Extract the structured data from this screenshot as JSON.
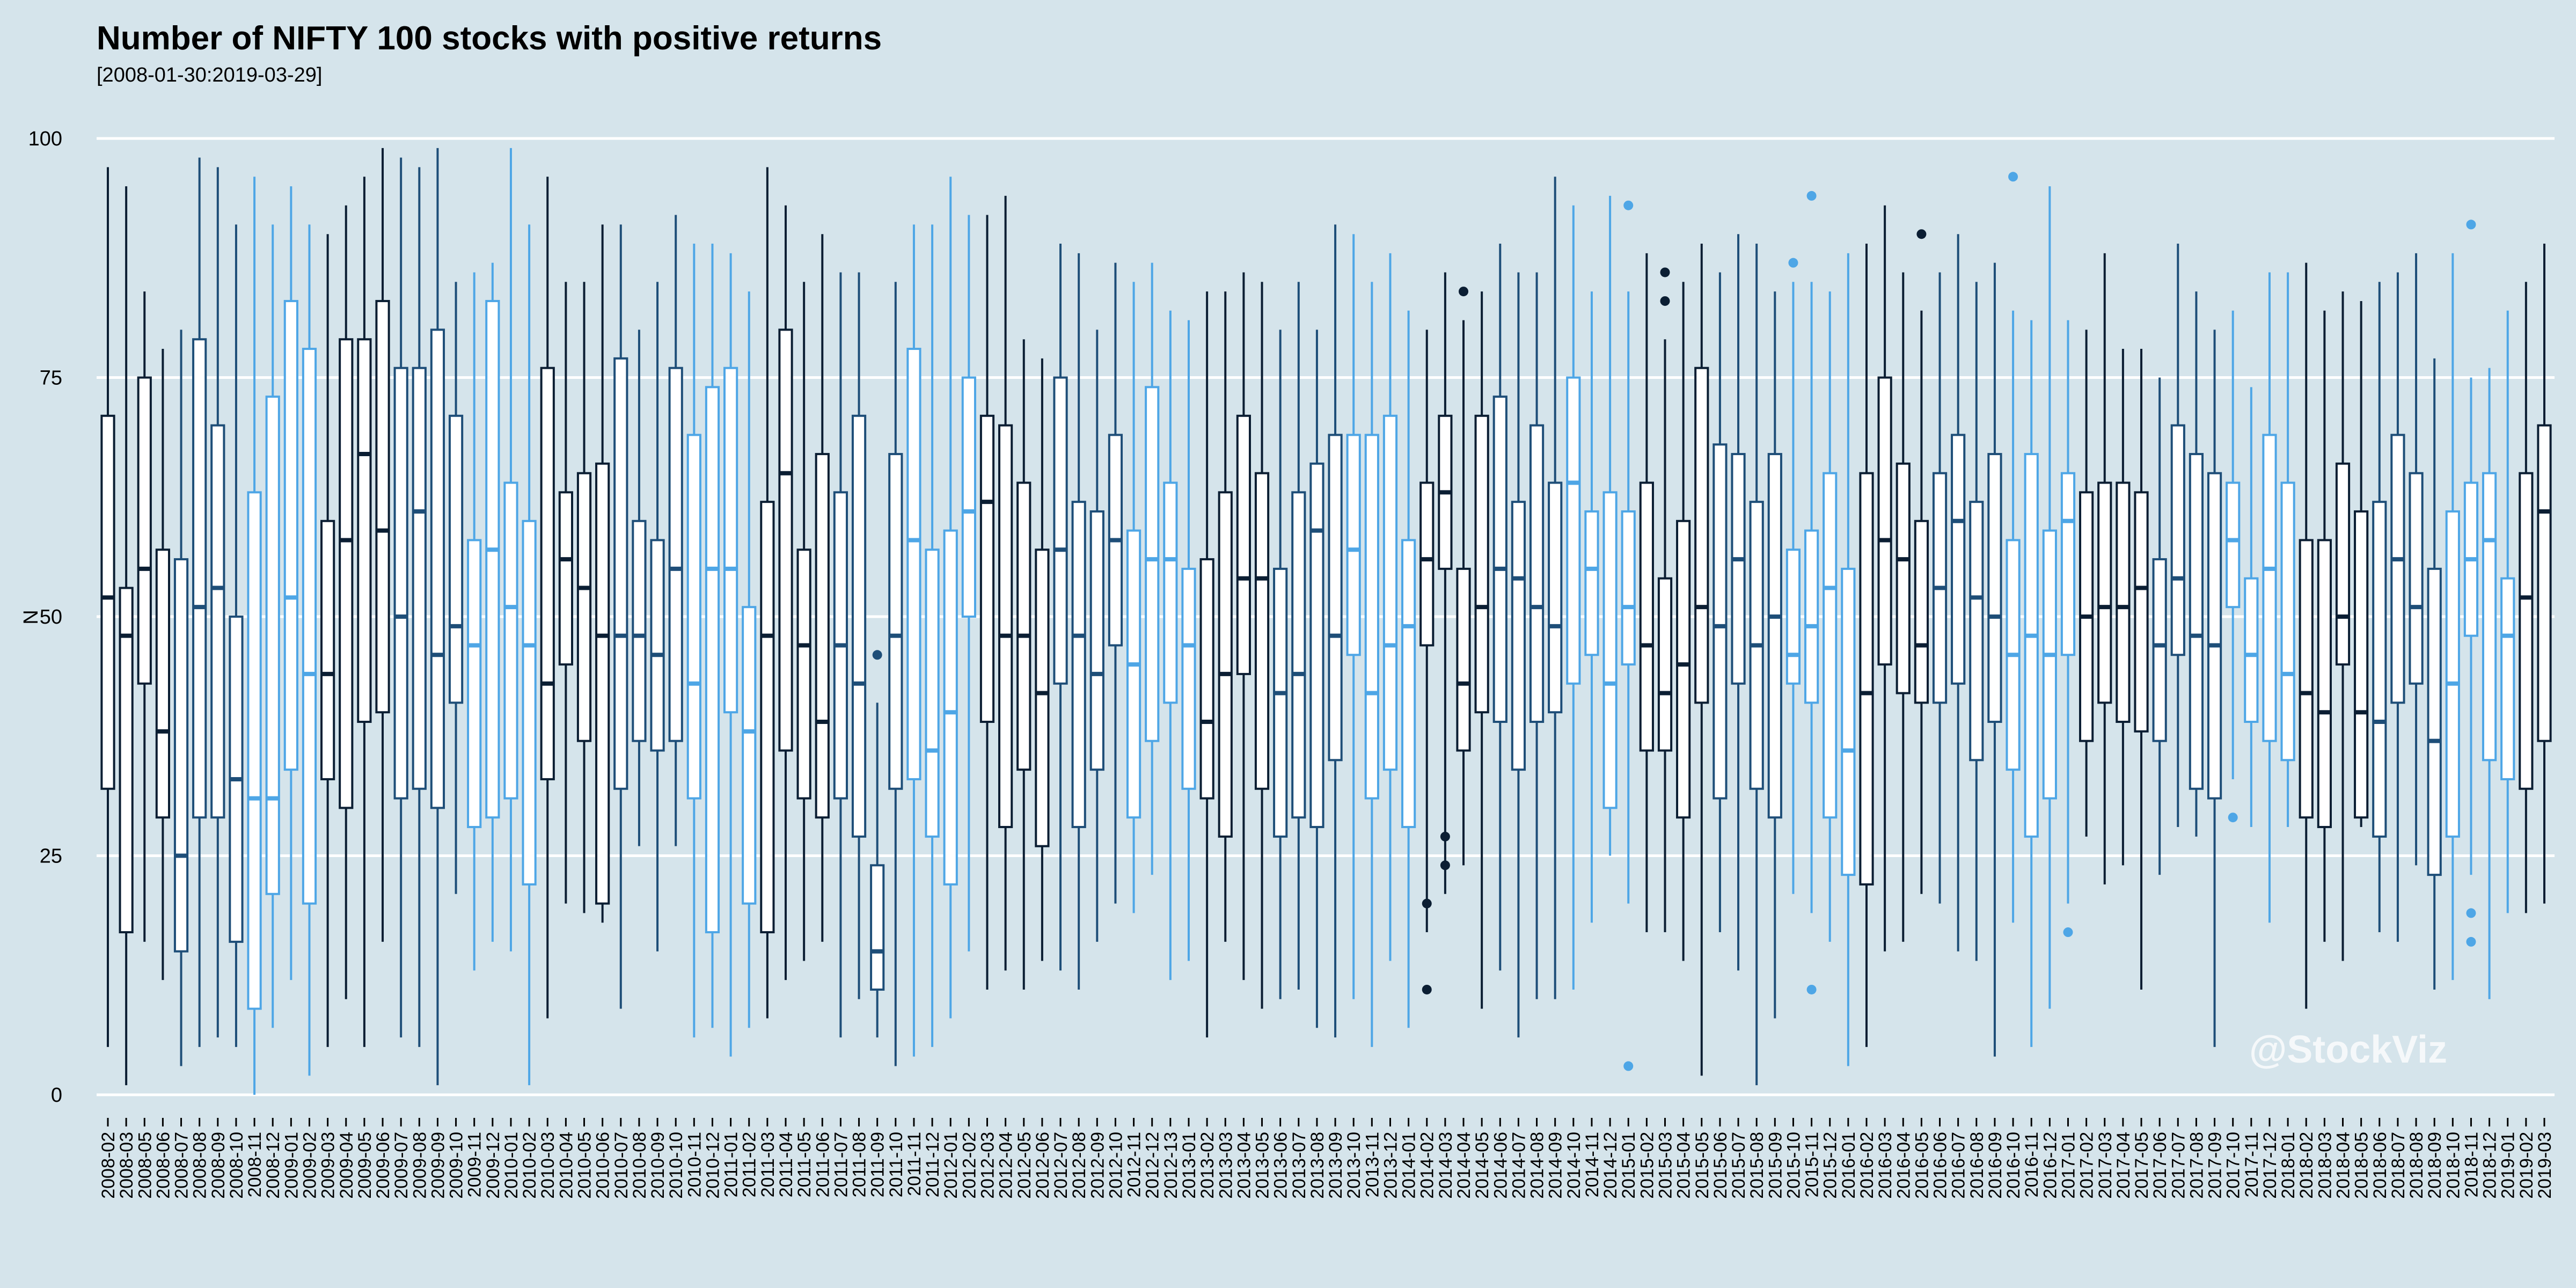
{
  "chart_data": {
    "type": "box",
    "title": "Number of NIFTY 100 stocks with positive returns",
    "subtitle": "[2008-01-30:2019-03-29]",
    "xlabel": "",
    "ylabel": "N",
    "ylim": [
      0,
      100
    ],
    "yticks": [
      0,
      25,
      50,
      75,
      100
    ],
    "grid": "horizontal",
    "legend": "none",
    "watermark": "@StockViz",
    "colors": {
      "background": "#d5e4eb",
      "grid": "#ffffff",
      "box_fill": "#ffffff",
      "dark": "#0b1e33",
      "mid": "#1e4e78",
      "light": "#4ea6e6"
    },
    "fields": [
      "month",
      "min",
      "q1",
      "median",
      "q3",
      "max",
      "outliers"
    ],
    "boxes": [
      [
        "2008-02",
        5,
        32,
        52,
        71,
        97,
        []
      ],
      [
        "2008-03",
        1,
        17,
        48,
        53,
        95,
        []
      ],
      [
        "2008-05",
        16,
        43,
        55,
        75,
        84,
        []
      ],
      [
        "2008-06",
        12,
        29,
        38,
        57,
        78,
        []
      ],
      [
        "2008-07",
        3,
        15,
        25,
        56,
        80,
        []
      ],
      [
        "2008-08",
        5,
        29,
        51,
        79,
        98,
        []
      ],
      [
        "2008-09",
        6,
        29,
        53,
        70,
        97,
        []
      ],
      [
        "2008-10",
        5,
        16,
        33,
        50,
        91,
        []
      ],
      [
        "2008-11",
        0,
        9,
        31,
        63,
        96,
        []
      ],
      [
        "2008-12",
        7,
        21,
        31,
        73,
        91,
        []
      ],
      [
        "2009-01",
        12,
        34,
        52,
        83,
        95,
        []
      ],
      [
        "2009-02",
        2,
        20,
        44,
        78,
        91,
        []
      ],
      [
        "2009-03",
        5,
        33,
        44,
        60,
        90,
        []
      ],
      [
        "2009-04",
        10,
        30,
        58,
        79,
        93,
        []
      ],
      [
        "2009-05",
        5,
        39,
        67,
        79,
        96,
        []
      ],
      [
        "2009-06",
        16,
        40,
        59,
        83,
        99,
        []
      ],
      [
        "2009-07",
        6,
        31,
        50,
        76,
        98,
        []
      ],
      [
        "2009-08",
        5,
        32,
        61,
        76,
        97,
        []
      ],
      [
        "2009-09",
        1,
        30,
        46,
        80,
        99,
        []
      ],
      [
        "2009-10",
        21,
        41,
        49,
        71,
        85,
        []
      ],
      [
        "2009-11",
        13,
        28,
        47,
        58,
        86,
        []
      ],
      [
        "2009-12",
        16,
        29,
        57,
        83,
        87,
        []
      ],
      [
        "2010-01",
        15,
        31,
        51,
        64,
        99,
        []
      ],
      [
        "2010-02",
        1,
        22,
        47,
        60,
        91,
        []
      ],
      [
        "2010-03",
        8,
        33,
        43,
        76,
        96,
        []
      ],
      [
        "2010-04",
        20,
        45,
        56,
        63,
        85,
        []
      ],
      [
        "2010-05",
        19,
        37,
        53,
        65,
        85,
        []
      ],
      [
        "2010-06",
        18,
        20,
        48,
        66,
        91,
        []
      ],
      [
        "2010-07",
        9,
        32,
        48,
        77,
        91,
        []
      ],
      [
        "2010-08",
        26,
        37,
        48,
        60,
        80,
        []
      ],
      [
        "2010-09",
        15,
        36,
        46,
        58,
        85,
        []
      ],
      [
        "2010-10",
        26,
        37,
        55,
        76,
        92,
        []
      ],
      [
        "2010-11",
        6,
        31,
        43,
        69,
        89,
        []
      ],
      [
        "2010-12",
        7,
        17,
        55,
        74,
        89,
        []
      ],
      [
        "2011-01",
        4,
        40,
        55,
        76,
        88,
        []
      ],
      [
        "2011-02",
        7,
        20,
        38,
        51,
        84,
        []
      ],
      [
        "2011-03",
        8,
        17,
        48,
        62,
        97,
        []
      ],
      [
        "2011-04",
        12,
        36,
        65,
        80,
        93,
        []
      ],
      [
        "2011-05",
        14,
        31,
        47,
        57,
        85,
        []
      ],
      [
        "2011-06",
        16,
        29,
        39,
        67,
        90,
        []
      ],
      [
        "2011-07",
        6,
        31,
        47,
        63,
        86,
        []
      ],
      [
        "2011-08",
        10,
        27,
        43,
        71,
        86,
        []
      ],
      [
        "2011-09",
        6,
        11,
        15,
        24,
        41,
        [
          46
        ]
      ],
      [
        "2011-10",
        3,
        32,
        48,
        67,
        85,
        []
      ],
      [
        "2011-11",
        4,
        33,
        58,
        78,
        91,
        []
      ],
      [
        "2011-12",
        5,
        27,
        36,
        57,
        91,
        []
      ],
      [
        "2012-01",
        8,
        22,
        40,
        59,
        96,
        []
      ],
      [
        "2012-02",
        15,
        50,
        61,
        75,
        92,
        []
      ],
      [
        "2012-03",
        11,
        39,
        62,
        71,
        92,
        []
      ],
      [
        "2012-04",
        13,
        28,
        48,
        70,
        94,
        []
      ],
      [
        "2012-05",
        11,
        34,
        48,
        64,
        79,
        []
      ],
      [
        "2012-06",
        14,
        26,
        42,
        57,
        77,
        []
      ],
      [
        "2012-07",
        13,
        43,
        57,
        75,
        89,
        []
      ],
      [
        "2012-08",
        11,
        28,
        48,
        62,
        88,
        []
      ],
      [
        "2012-09",
        16,
        34,
        44,
        61,
        80,
        []
      ],
      [
        "2012-10",
        20,
        47,
        58,
        69,
        87,
        []
      ],
      [
        "2012-11",
        19,
        29,
        45,
        59,
        85,
        []
      ],
      [
        "2012-12",
        23,
        37,
        56,
        74,
        87,
        []
      ],
      [
        "2012-13",
        12,
        41,
        56,
        64,
        82,
        []
      ],
      [
        "2013-01",
        14,
        32,
        47,
        55,
        81,
        []
      ],
      [
        "2013-02",
        6,
        31,
        39,
        56,
        84,
        []
      ],
      [
        "2013-03",
        16,
        27,
        44,
        63,
        84,
        []
      ],
      [
        "2013-04",
        12,
        44,
        54,
        71,
        86,
        []
      ],
      [
        "2013-05",
        9,
        32,
        54,
        65,
        85,
        []
      ],
      [
        "2013-06",
        10,
        27,
        42,
        55,
        80,
        []
      ],
      [
        "2013-07",
        11,
        29,
        44,
        63,
        85,
        []
      ],
      [
        "2013-08",
        7,
        28,
        59,
        66,
        80,
        []
      ],
      [
        "2013-09",
        6,
        35,
        48,
        69,
        91,
        []
      ],
      [
        "2013-10",
        10,
        46,
        57,
        69,
        90,
        []
      ],
      [
        "2013-11",
        5,
        31,
        42,
        69,
        85,
        []
      ],
      [
        "2013-12",
        14,
        34,
        47,
        71,
        88,
        []
      ],
      [
        "2014-01",
        7,
        28,
        49,
        58,
        82,
        []
      ],
      [
        "2014-02",
        17,
        47,
        56,
        64,
        80,
        [
          20,
          11
        ]
      ],
      [
        "2014-03",
        21,
        55,
        63,
        71,
        86,
        [
          27,
          24
        ]
      ],
      [
        "2014-04",
        24,
        36,
        43,
        55,
        81,
        [
          84
        ]
      ],
      [
        "2014-05",
        9,
        40,
        51,
        71,
        84,
        []
      ],
      [
        "2014-06",
        13,
        39,
        55,
        73,
        89,
        []
      ],
      [
        "2014-07",
        6,
        34,
        54,
        62,
        86,
        []
      ],
      [
        "2014-08",
        10,
        39,
        51,
        70,
        86,
        []
      ],
      [
        "2014-09",
        10,
        40,
        49,
        64,
        96,
        []
      ],
      [
        "2014-10",
        11,
        43,
        64,
        75,
        93,
        []
      ],
      [
        "2014-11",
        18,
        46,
        55,
        61,
        84,
        []
      ],
      [
        "2014-12",
        25,
        30,
        43,
        63,
        94,
        []
      ],
      [
        "2015-01",
        20,
        45,
        51,
        61,
        84,
        [
          93,
          3
        ]
      ],
      [
        "2015-02",
        17,
        36,
        47,
        64,
        88,
        []
      ],
      [
        "2015-03",
        17,
        36,
        42,
        54,
        79,
        [
          86,
          83
        ]
      ],
      [
        "2015-04",
        14,
        29,
        45,
        60,
        85,
        []
      ],
      [
        "2015-05",
        2,
        41,
        51,
        76,
        89,
        []
      ],
      [
        "2015-06",
        17,
        31,
        49,
        68,
        86,
        []
      ],
      [
        "2015-07",
        13,
        43,
        56,
        67,
        90,
        []
      ],
      [
        "2015-08",
        1,
        32,
        47,
        62,
        89,
        []
      ],
      [
        "2015-09",
        8,
        29,
        50,
        67,
        84,
        []
      ],
      [
        "2015-10",
        21,
        43,
        46,
        57,
        85,
        [
          87
        ]
      ],
      [
        "2015-11",
        19,
        41,
        49,
        59,
        85,
        [
          94,
          11
        ]
      ],
      [
        "2015-12",
        16,
        29,
        53,
        65,
        84,
        []
      ],
      [
        "2016-01",
        3,
        23,
        36,
        55,
        88,
        []
      ],
      [
        "2016-02",
        5,
        22,
        42,
        65,
        89,
        []
      ],
      [
        "2016-03",
        15,
        45,
        58,
        75,
        93,
        []
      ],
      [
        "2016-04",
        16,
        42,
        56,
        66,
        86,
        []
      ],
      [
        "2016-05",
        21,
        41,
        47,
        60,
        82,
        [
          90
        ]
      ],
      [
        "2016-06",
        20,
        41,
        53,
        65,
        86,
        []
      ],
      [
        "2016-07",
        15,
        43,
        60,
        69,
        90,
        []
      ],
      [
        "2016-08",
        14,
        35,
        52,
        62,
        85,
        []
      ],
      [
        "2016-09",
        4,
        39,
        50,
        67,
        87,
        []
      ],
      [
        "2016-10",
        18,
        34,
        46,
        58,
        82,
        [
          96
        ]
      ],
      [
        "2016-11",
        5,
        27,
        48,
        67,
        81,
        []
      ],
      [
        "2016-12",
        9,
        31,
        46,
        59,
        95,
        []
      ],
      [
        "2017-01",
        20,
        46,
        60,
        65,
        81,
        [
          17
        ]
      ],
      [
        "2017-02",
        27,
        37,
        50,
        63,
        80,
        []
      ],
      [
        "2017-03",
        22,
        41,
        51,
        64,
        88,
        []
      ],
      [
        "2017-04",
        24,
        39,
        51,
        64,
        78,
        []
      ],
      [
        "2017-05",
        11,
        38,
        53,
        63,
        78,
        []
      ],
      [
        "2017-06",
        23,
        37,
        47,
        56,
        75,
        []
      ],
      [
        "2017-07",
        28,
        46,
        54,
        70,
        89,
        []
      ],
      [
        "2017-08",
        27,
        32,
        48,
        67,
        84,
        []
      ],
      [
        "2017-09",
        5,
        31,
        47,
        65,
        80,
        []
      ],
      [
        "2017-10",
        33,
        51,
        58,
        64,
        82,
        [
          29
        ]
      ],
      [
        "2017-11",
        28,
        39,
        46,
        54,
        74,
        []
      ],
      [
        "2017-12",
        18,
        37,
        55,
        69,
        86,
        []
      ],
      [
        "2018-01",
        28,
        35,
        44,
        64,
        86,
        []
      ],
      [
        "2018-02",
        9,
        29,
        42,
        58,
        87,
        []
      ],
      [
        "2018-03",
        16,
        28,
        40,
        58,
        82,
        []
      ],
      [
        "2018-04",
        14,
        45,
        50,
        66,
        84,
        []
      ],
      [
        "2018-05",
        28,
        29,
        40,
        61,
        83,
        []
      ],
      [
        "2018-06",
        17,
        27,
        39,
        62,
        85,
        []
      ],
      [
        "2018-07",
        16,
        41,
        56,
        69,
        86,
        []
      ],
      [
        "2018-08",
        24,
        43,
        51,
        65,
        88,
        []
      ],
      [
        "2018-09",
        11,
        23,
        37,
        55,
        77,
        []
      ],
      [
        "2018-10",
        12,
        27,
        43,
        61,
        88,
        []
      ],
      [
        "2018-11",
        23,
        48,
        56,
        64,
        75,
        [
          91,
          19,
          16
        ]
      ],
      [
        "2018-12",
        10,
        35,
        58,
        65,
        76,
        []
      ],
      [
        "2019-01",
        19,
        33,
        48,
        54,
        82,
        []
      ],
      [
        "2019-02",
        19,
        32,
        52,
        65,
        85,
        []
      ],
      [
        "2019-03",
        20,
        37,
        61,
        70,
        89,
        []
      ]
    ]
  }
}
